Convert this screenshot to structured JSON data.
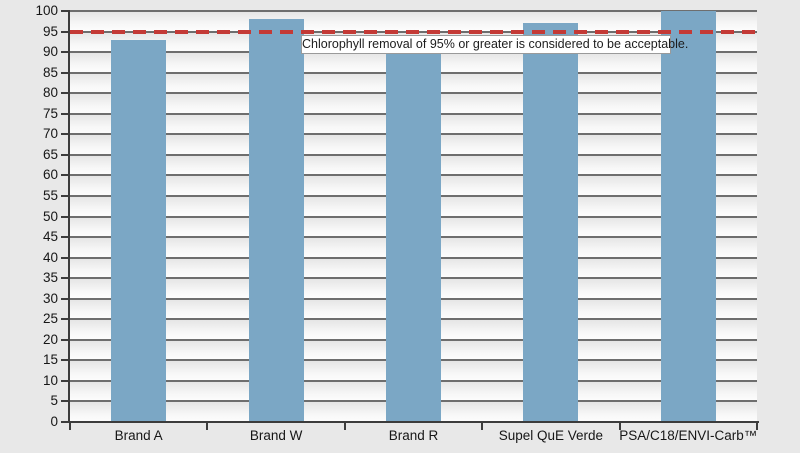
{
  "chart_data": {
    "type": "bar",
    "title": "",
    "xlabel": "",
    "ylabel": "",
    "categories": [
      "Brand A",
      "Brand W",
      "Brand R",
      "Supel QuE Verde",
      "PSA/C18/ENVI-Carb™"
    ],
    "values": [
      93,
      98,
      90,
      97,
      100
    ],
    "ylim": [
      0,
      100
    ],
    "ytick_step": 5,
    "grid": true,
    "legend": "none",
    "bar_color": "#7BA7C5",
    "plot_bg_color": "#f2f2f2",
    "page_bg_color": "#e8e8e8",
    "gridline_color": "#6e6e6e",
    "axis_color": "#3c3c3c",
    "reference_line": {
      "value": 95,
      "style": "dashed",
      "color": "#C43A36",
      "annotation": "Chlorophyll removal of 95% or greater is considered to be acceptable."
    }
  }
}
